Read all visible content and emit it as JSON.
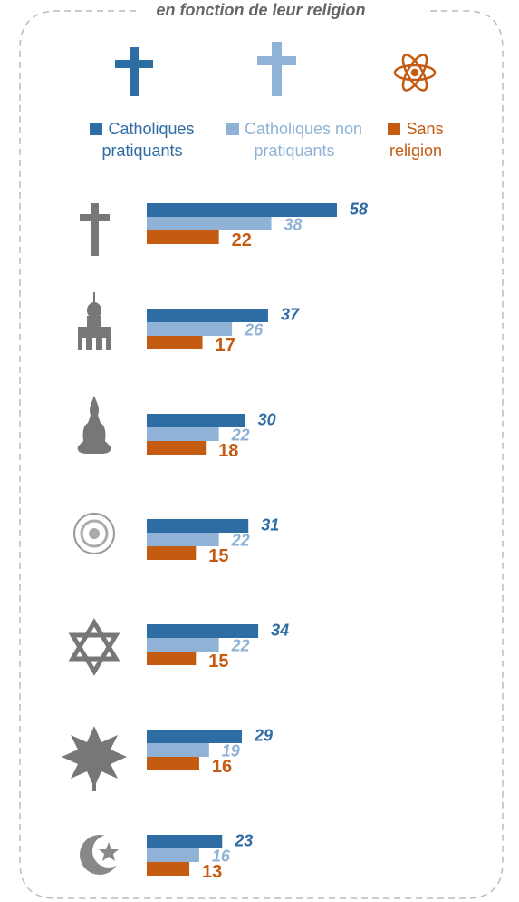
{
  "chart_data": {
    "type": "bar",
    "orientation": "horizontal",
    "title": "en fonction de leur religion",
    "categories": [
      null,
      null,
      null,
      null,
      null,
      null,
      null
    ],
    "series": [
      {
        "name": "Catholiques pratiquants",
        "color": "#2e6ca4",
        "values": [
          58,
          37,
          30,
          31,
          34,
          29,
          23
        ]
      },
      {
        "name": "Catholiques non pratiquants",
        "color": "#8fb2d6",
        "values": [
          38,
          26,
          22,
          22,
          22,
          19,
          16
        ]
      },
      {
        "name": "Sans religion",
        "color": "#c55a11",
        "values": [
          22,
          17,
          18,
          15,
          15,
          16,
          13
        ]
      }
    ]
  }
}
